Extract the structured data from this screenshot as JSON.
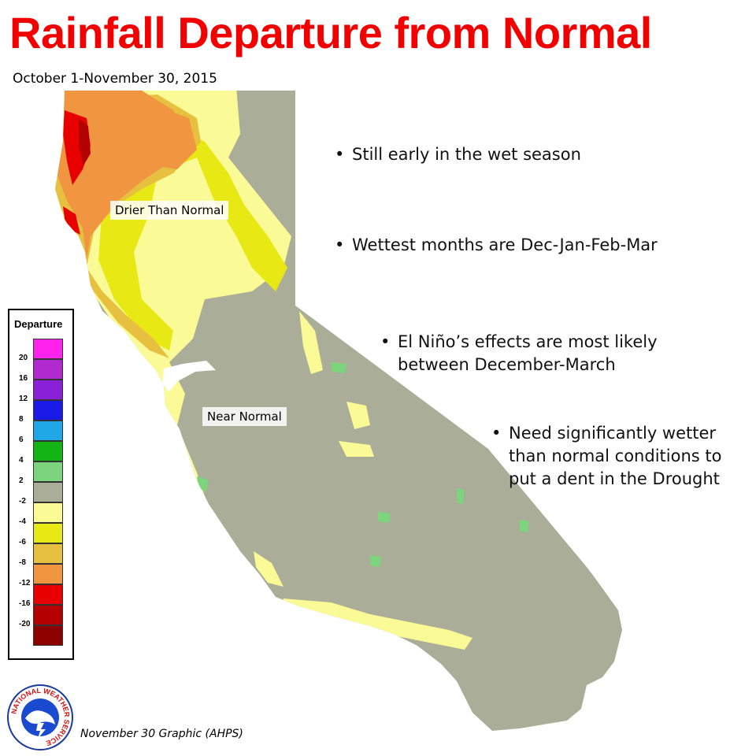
{
  "title": "Rainfall Departure from Normal",
  "subtitle": "October 1-November 30, 2015",
  "bullets": [
    {
      "lines": [
        "Still early in the wet season"
      ]
    },
    {
      "lines": [
        "Wettest months are Dec-Jan-Feb-Mar"
      ]
    },
    {
      "lines": [
        "El Niño’s effects are most likely",
        "between December-March"
      ]
    },
    {
      "lines": [
        "Need significantly wetter",
        "than normal conditions to",
        "put a dent in the Drought"
      ]
    }
  ],
  "bullet_symbol": "•",
  "map_labels": {
    "drier": "Drier Than Normal",
    "near": "Near Normal"
  },
  "legend": {
    "title": "Departure",
    "ticks": [
      "20",
      "16",
      "12",
      "8",
      "6",
      "4",
      "2",
      "-2",
      "-4",
      "-6",
      "-8",
      "-12",
      "-16",
      "-20"
    ],
    "colors": [
      "#ff22ee",
      "#b02ad0",
      "#8a20d8",
      "#1a1ae6",
      "#20a8e6",
      "#14b414",
      "#7cd47c",
      "#aaad97",
      "#fafa96",
      "#e8e814",
      "#e8c040",
      "#f09640",
      "#e80000",
      "#b40000",
      "#8c0000"
    ]
  },
  "footer": "November 30 Graphic (AHPS)",
  "logo": {
    "name": "noaa-nws-logo",
    "text": "NATIONAL WEATHER SERVICE"
  },
  "map_colors": {
    "near_normal": "#aaad97",
    "minus_2_4": "#fafa96",
    "minus_4_6": "#e8e814",
    "minus_6_8": "#e8c040",
    "minus_8_12": "#f09640",
    "minus_12_16": "#e80000",
    "minus_16_20": "#b40000",
    "plus_2_4": "#7cd47c"
  }
}
